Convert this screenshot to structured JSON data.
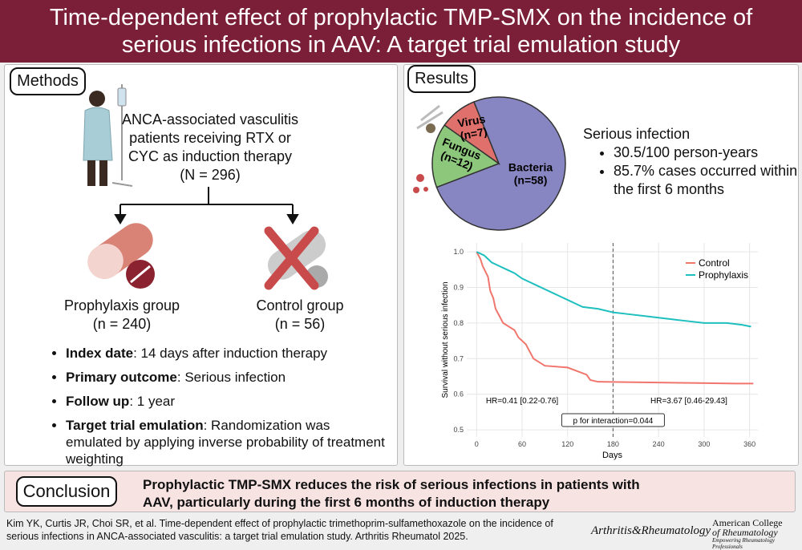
{
  "header": {
    "title": "Time-dependent effect of prophylactic TMP-SMX on the incidence of serious infections in AAV: A target trial emulation study"
  },
  "methods": {
    "heading": "Methods",
    "population": "ANCA-associated vasculitis patients receiving RTX or CYC as induction therapy",
    "n": "(N = 296)",
    "groups": [
      {
        "name": "Prophylaxis group",
        "n": "(n = 240)"
      },
      {
        "name": "Control group",
        "n": "(n = 56)"
      }
    ],
    "bullets": [
      {
        "term": "Index date",
        "text": ": 14 days after induction therapy"
      },
      {
        "term": "Primary outcome",
        "text": ": Serious infection"
      },
      {
        "term": "Follow up",
        "text": ": 1 year"
      },
      {
        "term": "Target trial emulation",
        "text": ": Randomization was emulated by applying inverse probability of treatment weighting"
      }
    ]
  },
  "results": {
    "heading": "Results",
    "infection_title": "Serious infection",
    "bullets": [
      "30.5/100 person-years",
      "85.7% cases occurred within the first 6 months"
    ]
  },
  "conclusion": {
    "heading": "Conclusion",
    "text": "Prophylactic TMP-SMX reduces the risk of serious infections in patients with AAV, particularly during the first 6 months of induction therapy"
  },
  "footer": {
    "citation": "Kim YK, Curtis JR, Choi SR, et al. Time-dependent effect of prophylactic trimethoprim-sulfamethoxazole on the incidence of serious infections in ANCA-associated vasculitis: a target trial emulation study. Arthritis Rheumatol 2025.",
    "journal": "Arthritis&Rheumatology",
    "society": [
      "American College",
      "of Rheumatology",
      "Empowering Rheumatology Professionals"
    ]
  },
  "chart_data": [
    {
      "type": "pie",
      "categories": [
        "Bacteria",
        "Fungus",
        "Virus"
      ],
      "values": [
        58,
        12,
        7
      ],
      "value_labels": [
        "(n=58)",
        "(n=12)",
        "(n=7)"
      ],
      "colors": [
        "#8886c2",
        "#8dc77b",
        "#e0706b"
      ]
    },
    {
      "type": "line",
      "xlabel": "Days",
      "ylabel": "Survival without serious infection",
      "xlim": [
        -13,
        371
      ],
      "ylim": [
        0.48,
        1.025
      ],
      "xticks": [
        0,
        60,
        120,
        180,
        240,
        300,
        360
      ],
      "yticks": [
        0.5,
        0.6,
        0.7,
        0.8,
        0.9,
        {
          "value": 1,
          "label": "1.0"
        }
      ],
      "grid": true,
      "legend": "upper right",
      "vline": 180,
      "annotations": [
        "HR=0.41 [0.22-0.76]",
        "HR=3.67 [0.46-29.43]",
        "p for interaction=0.044"
      ],
      "series": [
        {
          "name": "Control",
          "color": "#f0766d",
          "x": [
            0,
            5,
            8,
            15,
            18,
            22,
            25,
            30,
            35,
            50,
            55,
            65,
            70,
            75,
            90,
            120,
            145,
            150,
            160,
            340,
            365
          ],
          "values": [
            1.0,
            0.98,
            0.96,
            0.93,
            0.89,
            0.87,
            0.84,
            0.82,
            0.8,
            0.78,
            0.76,
            0.74,
            0.72,
            0.7,
            0.68,
            0.675,
            0.655,
            0.64,
            0.635,
            0.63,
            0.63
          ]
        },
        {
          "name": "Prophylaxis",
          "color": "#1dbfbf",
          "x": [
            0,
            5,
            10,
            15,
            20,
            30,
            40,
            50,
            60,
            70,
            80,
            90,
            100,
            110,
            120,
            130,
            140,
            160,
            180,
            200,
            220,
            240,
            260,
            280,
            300,
            330,
            350,
            362
          ],
          "values": [
            1.0,
            0.995,
            0.99,
            0.98,
            0.97,
            0.96,
            0.95,
            0.94,
            0.925,
            0.915,
            0.905,
            0.895,
            0.885,
            0.875,
            0.865,
            0.855,
            0.845,
            0.84,
            0.83,
            0.825,
            0.82,
            0.815,
            0.81,
            0.805,
            0.8,
            0.8,
            0.795,
            0.79
          ]
        }
      ]
    }
  ]
}
